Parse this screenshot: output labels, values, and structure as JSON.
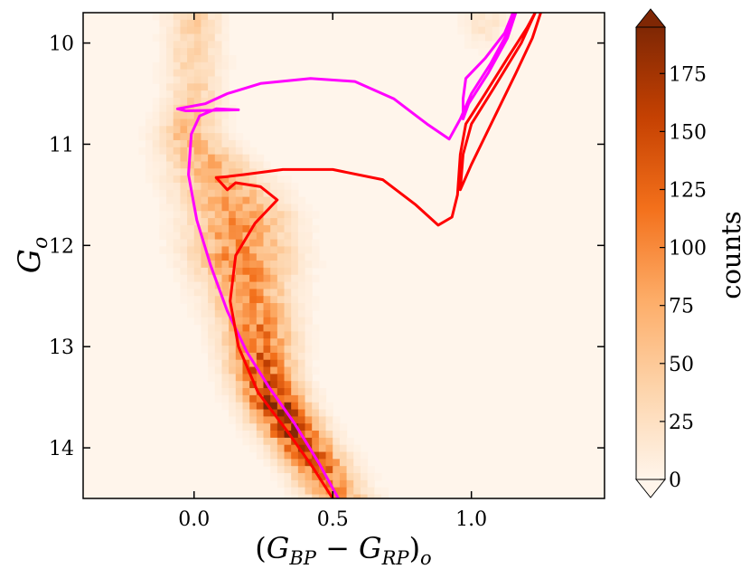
{
  "chart_data": {
    "type": "heatmap",
    "title": "",
    "xlabel": "(G_BP − G_RP)_o",
    "ylabel": "G_o",
    "xlim": [
      -0.4,
      1.48
    ],
    "ylim": [
      14.5,
      9.7
    ],
    "xticks": [
      {
        "value": 0.0,
        "label": "0.0"
      },
      {
        "value": 0.5,
        "label": "0.5"
      },
      {
        "value": 1.0,
        "label": "1.0"
      }
    ],
    "yticks": [
      {
        "value": 10,
        "label": "10"
      },
      {
        "value": 11,
        "label": "11"
      },
      {
        "value": 12,
        "label": "12"
      },
      {
        "value": 13,
        "label": "13"
      },
      {
        "value": 14,
        "label": "14"
      }
    ],
    "colorbar": {
      "label": "counts",
      "min": 0,
      "max": 195,
      "extend": "both",
      "ticks": [
        {
          "value": 0,
          "label": "0"
        },
        {
          "value": 25,
          "label": "25"
        },
        {
          "value": 50,
          "label": "50"
        },
        {
          "value": 75,
          "label": "75"
        },
        {
          "value": 100,
          "label": "100"
        },
        {
          "value": 125,
          "label": "125"
        },
        {
          "value": 150,
          "label": "150"
        },
        {
          "value": 175,
          "label": "175"
        }
      ],
      "colors": [
        "#fff5eb",
        "#fdd4ab",
        "#fdac67",
        "#f3701b",
        "#c54102",
        "#7f2704"
      ]
    },
    "density_model": {
      "description": "Hess-diagram stellar density (counts per bin) approximated by a ridge along the observed sequence",
      "ridge": [
        {
          "g": 10.5,
          "color": -0.0,
          "width": 0.06,
          "peak": 40
        },
        {
          "g": 10.9,
          "color": -0.02,
          "width": 0.07,
          "peak": 60
        },
        {
          "g": 11.3,
          "color": 0.08,
          "width": 0.1,
          "peak": 70
        },
        {
          "g": 11.7,
          "color": 0.16,
          "width": 0.11,
          "peak": 85
        },
        {
          "g": 12.1,
          "color": 0.17,
          "width": 0.11,
          "peak": 100
        },
        {
          "g": 12.5,
          "color": 0.2,
          "width": 0.09,
          "peak": 90
        },
        {
          "g": 12.9,
          "color": 0.23,
          "width": 0.08,
          "peak": 110
        },
        {
          "g": 13.3,
          "color": 0.25,
          "width": 0.07,
          "peak": 140
        },
        {
          "g": 13.6,
          "color": 0.3,
          "width": 0.07,
          "peak": 175
        },
        {
          "g": 13.9,
          "color": 0.37,
          "width": 0.07,
          "peak": 160
        },
        {
          "g": 14.2,
          "color": 0.45,
          "width": 0.07,
          "peak": 120
        },
        {
          "g": 14.5,
          "color": 0.52,
          "width": 0.07,
          "peak": 80
        }
      ],
      "giant_clump": {
        "g": 9.8,
        "color": 1.05,
        "width": 0.05,
        "peak": 20
      }
    },
    "series": [
      {
        "name": "isochrone-magenta",
        "color": "#ff00ff",
        "points": [
          [
            0.52,
            14.5
          ],
          [
            0.45,
            14.15
          ],
          [
            0.36,
            13.75
          ],
          [
            0.27,
            13.4
          ],
          [
            0.19,
            13.05
          ],
          [
            0.12,
            12.65
          ],
          [
            0.06,
            12.2
          ],
          [
            0.01,
            11.75
          ],
          [
            -0.02,
            11.3
          ],
          [
            -0.01,
            10.9
          ],
          [
            0.02,
            10.72
          ],
          [
            0.08,
            10.65
          ],
          [
            0.16,
            10.66
          ],
          [
            -0.03,
            10.67
          ],
          [
            -0.06,
            10.65
          ],
          [
            0.04,
            10.6
          ],
          [
            0.12,
            10.5
          ],
          [
            0.24,
            10.4
          ],
          [
            0.42,
            10.35
          ],
          [
            0.58,
            10.38
          ],
          [
            0.72,
            10.55
          ],
          [
            0.84,
            10.8
          ],
          [
            0.92,
            10.95
          ],
          [
            0.96,
            10.75
          ],
          [
            1.0,
            10.5
          ],
          [
            1.07,
            10.2
          ],
          [
            1.13,
            9.9
          ],
          [
            1.15,
            9.7
          ],
          [
            1.12,
            9.9
          ],
          [
            1.05,
            10.15
          ],
          [
            0.98,
            10.35
          ],
          [
            0.97,
            10.55
          ],
          [
            0.97,
            10.75
          ],
          [
            0.99,
            10.6
          ],
          [
            1.06,
            10.3
          ],
          [
            1.13,
            9.95
          ],
          [
            1.16,
            9.7
          ]
        ]
      },
      {
        "name": "isochrone-red",
        "color": "#ff0000",
        "points": [
          [
            0.5,
            14.5
          ],
          [
            0.43,
            14.2
          ],
          [
            0.34,
            13.85
          ],
          [
            0.23,
            13.45
          ],
          [
            0.16,
            13.0
          ],
          [
            0.13,
            12.55
          ],
          [
            0.15,
            12.1
          ],
          [
            0.22,
            11.78
          ],
          [
            0.3,
            11.55
          ],
          [
            0.24,
            11.42
          ],
          [
            0.15,
            11.38
          ],
          [
            0.12,
            11.45
          ],
          [
            0.08,
            11.33
          ],
          [
            0.12,
            11.32
          ],
          [
            0.18,
            11.3
          ],
          [
            0.32,
            11.25
          ],
          [
            0.5,
            11.25
          ],
          [
            0.68,
            11.35
          ],
          [
            0.8,
            11.6
          ],
          [
            0.88,
            11.8
          ],
          [
            0.93,
            11.72
          ],
          [
            0.95,
            11.5
          ],
          [
            0.96,
            11.1
          ],
          [
            0.98,
            10.8
          ],
          [
            1.05,
            10.5
          ],
          [
            1.13,
            10.15
          ],
          [
            1.2,
            9.85
          ],
          [
            1.23,
            9.7
          ],
          [
            1.18,
            10.0
          ],
          [
            1.08,
            10.45
          ],
          [
            1.0,
            10.8
          ],
          [
            0.97,
            11.1
          ],
          [
            0.96,
            11.45
          ],
          [
            1.0,
            11.2
          ],
          [
            1.08,
            10.75
          ],
          [
            1.16,
            10.3
          ],
          [
            1.22,
            9.95
          ],
          [
            1.25,
            9.7
          ]
        ]
      }
    ]
  }
}
